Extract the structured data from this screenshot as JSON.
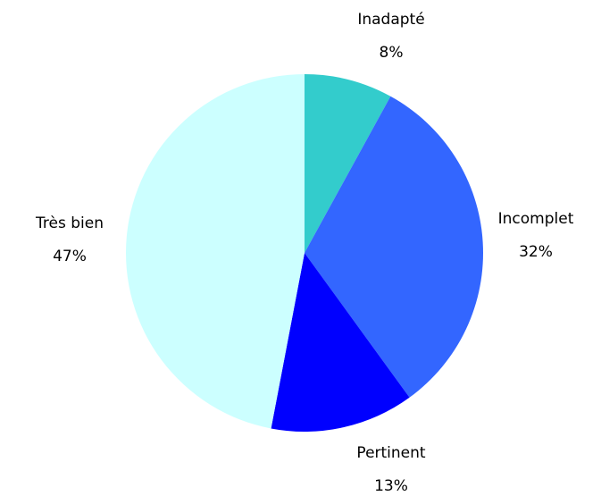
{
  "chart_data": {
    "type": "pie",
    "categories": [
      "Inadapté",
      "Incomplet",
      "Pertinent",
      "Très bien"
    ],
    "values": [
      8,
      32,
      13,
      47
    ],
    "value_labels": [
      "8%",
      "32%",
      "13%",
      "47%"
    ],
    "colors": [
      "#33cccc",
      "#3366ff",
      "#0000ff",
      "#ccffff"
    ]
  }
}
